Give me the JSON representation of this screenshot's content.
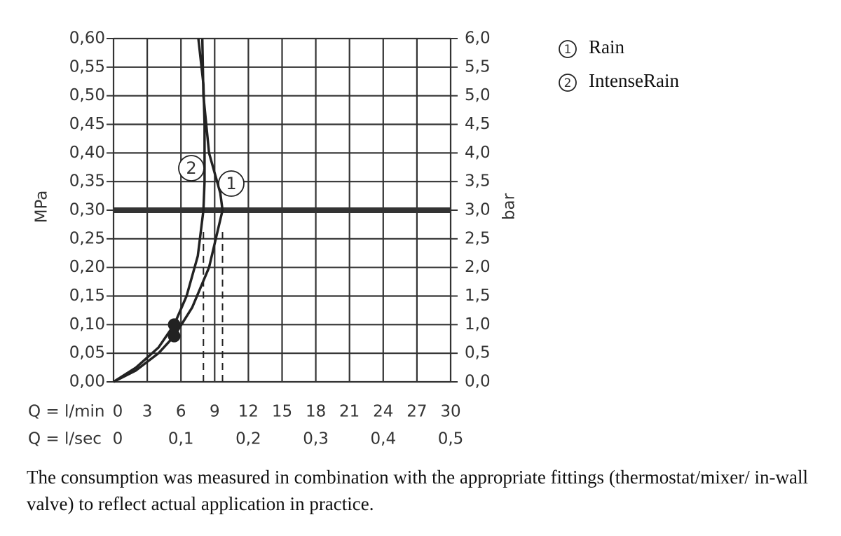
{
  "chart_data": {
    "type": "line",
    "xlabel": "Q = l/min",
    "x2label": "Q = l/sec",
    "ylabel": "MPa",
    "y2label": "bar",
    "xlim": [
      0,
      30
    ],
    "xticks": [
      0,
      3,
      6,
      9,
      12,
      15,
      18,
      21,
      24,
      27,
      30
    ],
    "x2lim": [
      0,
      0.5
    ],
    "x2ticks": [
      0,
      {
        "value": 0.1,
        "label": "0,1"
      },
      {
        "value": 0.2,
        "label": "0,2"
      },
      {
        "value": 0.3,
        "label": "0,3"
      },
      {
        "value": 0.4,
        "label": "0,4"
      },
      {
        "value": 0.5,
        "label": "0,5"
      }
    ],
    "ylim": [
      0,
      0.6
    ],
    "yticks": [
      {
        "value": 0,
        "label": "0,00"
      },
      {
        "value": 0.05,
        "label": "0,05"
      },
      {
        "value": 0.1,
        "label": "0,10"
      },
      {
        "value": 0.15,
        "label": "0,15"
      },
      {
        "value": 0.2,
        "label": "0,20"
      },
      {
        "value": 0.25,
        "label": "0,25"
      },
      {
        "value": 0.3,
        "label": "0,30"
      },
      {
        "value": 0.35,
        "label": "0,35"
      },
      {
        "value": 0.4,
        "label": "0,40"
      },
      {
        "value": 0.45,
        "label": "0,45"
      },
      {
        "value": 0.5,
        "label": "0,50"
      },
      {
        "value": 0.55,
        "label": "0,55"
      },
      {
        "value": 0.6,
        "label": "0,60"
      }
    ],
    "y2lim": [
      0,
      6
    ],
    "y2ticks": [
      {
        "value": 0,
        "label": "0,0"
      },
      {
        "value": 0.5,
        "label": "0,5"
      },
      {
        "value": 1,
        "label": "1,0"
      },
      {
        "value": 1.5,
        "label": "1,5"
      },
      {
        "value": 2,
        "label": "2,0"
      },
      {
        "value": 2.5,
        "label": "2,5"
      },
      {
        "value": 3,
        "label": "3,0"
      },
      {
        "value": 3.5,
        "label": "3,5"
      },
      {
        "value": 4,
        "label": "4,0"
      },
      {
        "value": 4.5,
        "label": "4,5"
      },
      {
        "value": 5,
        "label": "5,0"
      },
      {
        "value": 5.5,
        "label": "5,5"
      },
      {
        "value": 6,
        "label": "6,0"
      }
    ],
    "grid": true,
    "reference_y": 0.3,
    "series": [
      {
        "name": "Rain",
        "label": "1",
        "color": "#222222",
        "x": [
          0,
          2,
          4,
          5.4,
          7,
          8.5,
          9.7,
          9.5,
          8.5,
          8.0,
          7.9
        ],
        "values": [
          0,
          0.02,
          0.05,
          0.08,
          0.13,
          0.2,
          0.3,
          0.33,
          0.4,
          0.5,
          0.6
        ],
        "marker": {
          "x": 5.4,
          "y": 0.08
        },
        "rated_flow": 9.7
      },
      {
        "name": "IntenseRain",
        "label": "2",
        "color": "#222222",
        "x": [
          0,
          2,
          4,
          5.4,
          6.5,
          7.5,
          8.0,
          8.1,
          8.1,
          8.0,
          7.55
        ],
        "values": [
          0,
          0.025,
          0.06,
          0.1,
          0.15,
          0.22,
          0.3,
          0.35,
          0.45,
          0.52,
          0.6
        ],
        "marker": {
          "x": 5.4,
          "y": 0.1
        },
        "rated_flow": 8.0
      }
    ],
    "note": "The consumption was measured in combination with the appropriate fittings (thermostat/mixer/ in-wall valve) to reflect actual application in practice."
  }
}
